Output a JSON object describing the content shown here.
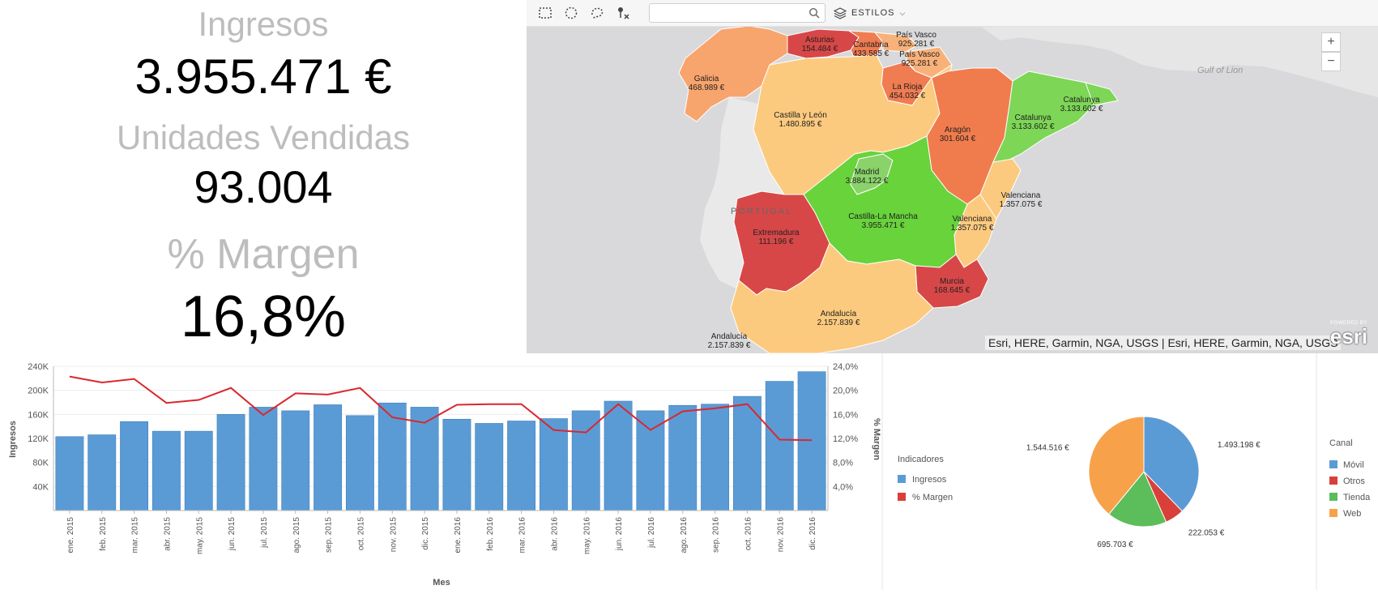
{
  "kpis": {
    "ingresos_label": "Ingresos",
    "ingresos_value": "3.955.471 €",
    "unidades_label": "Unidades Vendidas",
    "unidades_value": "93.004",
    "margen_label": "% Margen",
    "margen_value": "16,8%"
  },
  "map": {
    "toolbar": {
      "select_rect_icon": "rectangle-select-icon",
      "select_circle_icon": "circle-select-icon",
      "select_lasso_icon": "lasso-select-icon",
      "clear_pin_icon": "clear-pin-icon",
      "search_placeholder": "",
      "styles_label": "ESTILOS"
    },
    "zoom_in": "+",
    "zoom_out": "−",
    "place_labels": {
      "portugal": "PORTUGAL",
      "gulf": "Gulf of Lion"
    },
    "attribution": "Esri, HERE, Garmin, NGA, USGS | Esri, HERE, Garmin, NGA, USGS",
    "logo_top": "POWERED BY",
    "logo_bottom": "esri",
    "regions": [
      {
        "name": "Asturias",
        "value": "154.484 €",
        "color": "#d84747"
      },
      {
        "name": "Cantabria",
        "value": "433.585 €",
        "color": "#f07c52"
      },
      {
        "name": "País Vasco",
        "value": "925.281 €",
        "color": "#f9b17a"
      },
      {
        "name": "País Vasco",
        "value": "925.281 €",
        "color": "#f9b17a"
      },
      {
        "name": "Galicia",
        "value": "468.989 €",
        "color": "#f8a46d"
      },
      {
        "name": "La Rioja",
        "value": "454.032 €",
        "color": "#f07c52"
      },
      {
        "name": "Castilla y León",
        "value": "1.480.895 €",
        "color": "#fcca7e"
      },
      {
        "name": "Aragón",
        "value": "301.604 €",
        "color": "#f07c4d"
      },
      {
        "name": "Catalunya",
        "value": "3.133.602 €",
        "color": "#7dd656"
      },
      {
        "name": "Catalunya",
        "value": "3.133.602 €",
        "color": "#7dd656"
      },
      {
        "name": "Madrid",
        "value": "3.884.122 €",
        "color": "#8ad36a"
      },
      {
        "name": "Valenciana",
        "value": "1.357.075 €",
        "color": "#fcca7e"
      },
      {
        "name": "Valenciana",
        "value": "1.357.075 €",
        "color": "#fcca7e"
      },
      {
        "name": "Extremadura",
        "value": "111.196 €",
        "color": "#d84747"
      },
      {
        "name": "Castilla-La Mancha",
        "value": "3.955.471 €",
        "color": "#68d33a"
      },
      {
        "name": "Murcia",
        "value": "168.645 €",
        "color": "#d84747"
      },
      {
        "name": "Andalucía",
        "value": "2.157.839 €",
        "color": "#fcca7e"
      },
      {
        "name": "Andalucía",
        "value": "2.157.839 €",
        "color": "#fcca7e"
      }
    ]
  },
  "chart_data": [
    {
      "type": "bar",
      "xlabel": "Mes",
      "ylabel": "Ingresos",
      "y2label": "% Margen",
      "categories": [
        "ene. 2015",
        "feb. 2015",
        "mar. 2015",
        "abr. 2015",
        "may. 2015",
        "jun. 2015",
        "jul. 2015",
        "ago. 2015",
        "sep. 2015",
        "oct. 2015",
        "nov. 2015",
        "dic. 2015",
        "ene. 2016",
        "feb. 2016",
        "mar. 2016",
        "abr. 2016",
        "may. 2016",
        "jun. 2016",
        "jul. 2016",
        "ago. 2016",
        "sep. 2016",
        "oct. 2016",
        "nov. 2016",
        "dic. 2016"
      ],
      "series": [
        {
          "kind": "bar",
          "color": "#5b9bd5",
          "values": [
            123000,
            126000,
            148000,
            132000,
            132000,
            160000,
            172000,
            166000,
            176000,
            158000,
            179000,
            172000,
            152000,
            145000,
            149000,
            153000,
            166000,
            182000,
            166000,
            175000,
            177000,
            190000,
            215000,
            231000
          ]
        },
        {
          "kind": "line",
          "axis": "right",
          "color": "#d9272e",
          "values": [
            22.3,
            21.3,
            21.9,
            17.9,
            18.4,
            20.4,
            15.9,
            19.5,
            19.3,
            20.4,
            15.5,
            14.6,
            17.6,
            17.7,
            17.7,
            13.4,
            13.0,
            17.7,
            13.4,
            16.5,
            17.0,
            17.7,
            11.8,
            11.7
          ]
        }
      ],
      "ylim": [
        0,
        240000
      ],
      "yticks": [
        "40K",
        "80K",
        "120K",
        "160K",
        "200K",
        "240K"
      ],
      "y2lim": [
        0,
        24
      ],
      "y2ticks": [
        "4,0%",
        "8,0%",
        "12,0%",
        "16,0%",
        "20,0%",
        "24,0%"
      ],
      "grid": true
    },
    {
      "type": "pie",
      "legend_left_title": "Indicadores",
      "legend_left_items": [
        {
          "label": "Ingresos",
          "color": "#5b9bd5"
        },
        {
          "label": "% Margen",
          "color": "#d9403a"
        }
      ],
      "legend_title": "Canal",
      "slices": [
        {
          "label": "Móvil",
          "value": 1493198,
          "display": "1.493.198 €",
          "color": "#5b9bd5"
        },
        {
          "label": "Otros",
          "value": 222053,
          "display": "222.053 €",
          "color": "#d9403a"
        },
        {
          "label": "Tienda",
          "value": 695703,
          "display": "695.703 €",
          "color": "#5cbd5b"
        },
        {
          "label": "Web",
          "value": 1544516,
          "display": "1.544.516 €",
          "color": "#f7a24b"
        }
      ]
    }
  ]
}
